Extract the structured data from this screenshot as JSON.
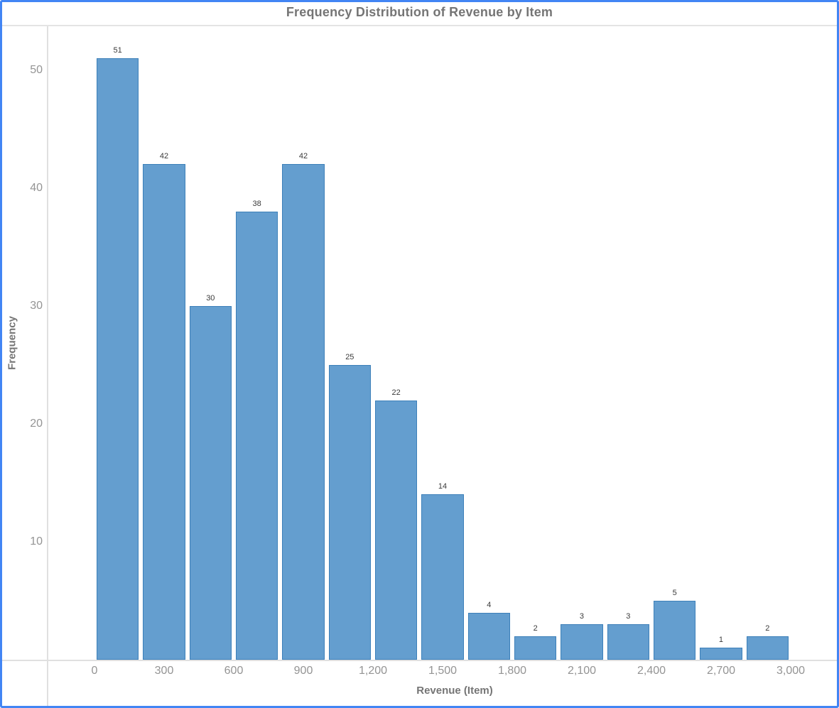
{
  "window": {
    "title": "Frequency Distribution of Revenue by Item"
  },
  "colors": {
    "frame_border": "#4285f4",
    "bar_fill": "#649ecf",
    "bar_border": "#3d80b9",
    "axis_line": "#e0e0e0",
    "title_text": "#757575",
    "tick_text": "#949494",
    "value_label_text": "#3a3a3a"
  },
  "chart_data": {
    "type": "bar",
    "subtype": "histogram",
    "title": "Frequency Distribution of Revenue by Item",
    "xlabel": "Revenue (Item)",
    "ylabel": "Frequency",
    "bin_width": 200,
    "xlim": [
      0,
      3000
    ],
    "ylim": [
      0,
      53.8
    ],
    "grid": false,
    "legend_position": "none",
    "bins": [
      {
        "start": 0,
        "end": 200,
        "value": 51,
        "label": "51"
      },
      {
        "start": 200,
        "end": 400,
        "value": 42,
        "label": "42"
      },
      {
        "start": 400,
        "end": 600,
        "value": 30,
        "label": "30"
      },
      {
        "start": 600,
        "end": 800,
        "value": 38,
        "label": "38"
      },
      {
        "start": 800,
        "end": 1000,
        "value": 42,
        "label": "42"
      },
      {
        "start": 1000,
        "end": 1200,
        "value": 25,
        "label": "25"
      },
      {
        "start": 1200,
        "end": 1400,
        "value": 22,
        "label": "22"
      },
      {
        "start": 1400,
        "end": 1600,
        "value": 14,
        "label": "14"
      },
      {
        "start": 1600,
        "end": 1800,
        "value": 4,
        "label": "4"
      },
      {
        "start": 1800,
        "end": 2000,
        "value": 2,
        "label": "2"
      },
      {
        "start": 2000,
        "end": 2200,
        "value": 3,
        "label": "3"
      },
      {
        "start": 2200,
        "end": 2400,
        "value": 3,
        "label": "3"
      },
      {
        "start": 2400,
        "end": 2600,
        "value": 5,
        "label": "5"
      },
      {
        "start": 2600,
        "end": 2800,
        "value": 1,
        "label": "1"
      },
      {
        "start": 2800,
        "end": 3000,
        "value": 2,
        "label": "2"
      }
    ],
    "x_ticks": [
      {
        "value": 0,
        "label": "0"
      },
      {
        "value": 300,
        "label": "300"
      },
      {
        "value": 600,
        "label": "600"
      },
      {
        "value": 900,
        "label": "900"
      },
      {
        "value": 1200,
        "label": "1,200"
      },
      {
        "value": 1500,
        "label": "1,500"
      },
      {
        "value": 1800,
        "label": "1,800"
      },
      {
        "value": 2100,
        "label": "2,100"
      },
      {
        "value": 2400,
        "label": "2,400"
      },
      {
        "value": 2700,
        "label": "2,700"
      },
      {
        "value": 3000,
        "label": "3,000"
      }
    ],
    "y_ticks": [
      {
        "value": 10,
        "label": "10"
      },
      {
        "value": 20,
        "label": "20"
      },
      {
        "value": 30,
        "label": "30"
      },
      {
        "value": 40,
        "label": "40"
      },
      {
        "value": 50,
        "label": "50"
      }
    ]
  }
}
